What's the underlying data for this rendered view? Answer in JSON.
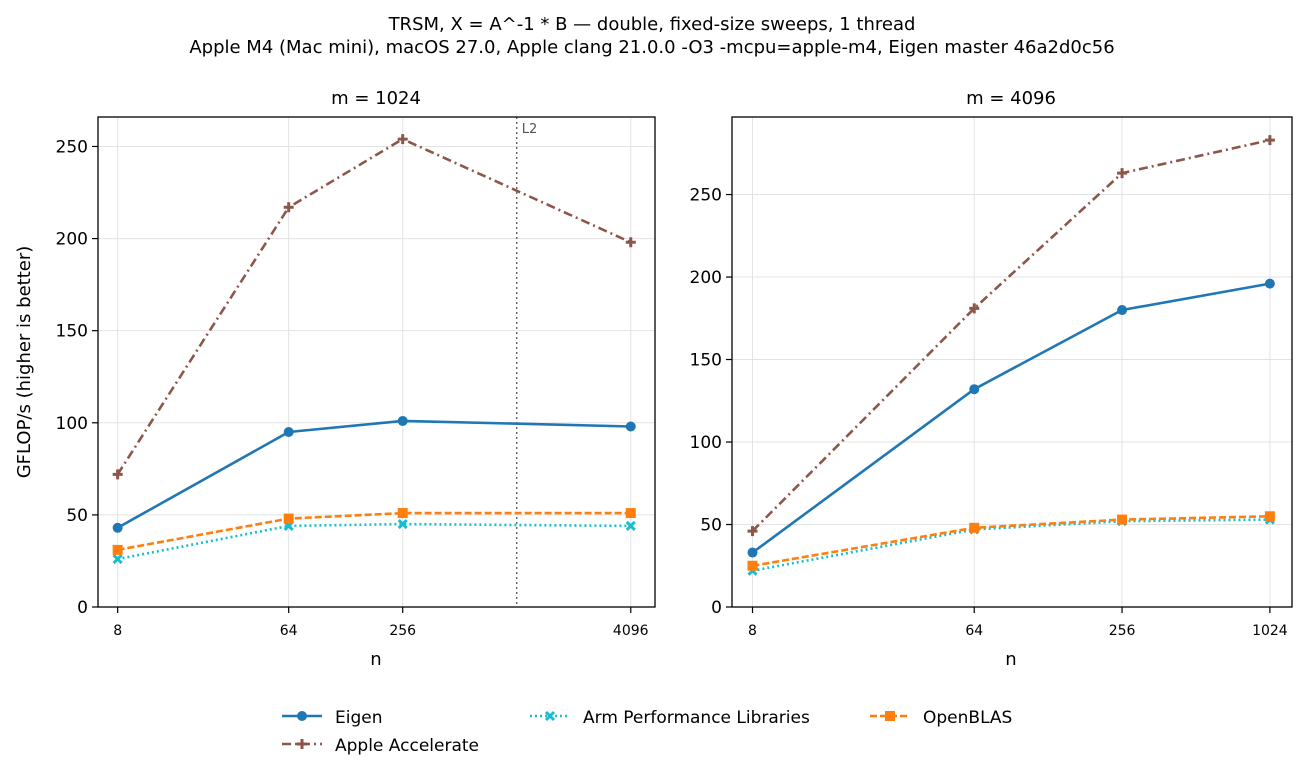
{
  "figure": {
    "title_line1": "TRSM, X = A^-1 * B — double, fixed-size sweeps, 1 thread",
    "title_line2": "Apple M4 (Mac mini), macOS 27.0, Apple clang 21.0.0 -O3 -mcpu=apple-m4, Eigen master 46a2d0c56"
  },
  "colors": {
    "Eigen": "#1f77b4",
    "Apple Accelerate": "#8c564b",
    "Arm Performance Libraries": "#17becf",
    "OpenBLAS": "#ff7f0e",
    "l2_marker": "#555555",
    "grid": "#e3e3e3"
  },
  "legend": {
    "placement": "bottom-center",
    "items": [
      {
        "label": "Eigen",
        "marker": "circle",
        "dash": "solid"
      },
      {
        "label": "Apple Accelerate",
        "marker": "plus",
        "dash": "dashdot"
      },
      {
        "label": "Arm Performance Libraries",
        "marker": "x",
        "dash": "dotted"
      },
      {
        "label": "OpenBLAS",
        "marker": "square",
        "dash": "dashed"
      }
    ]
  },
  "chart_data": [
    {
      "type": "line",
      "title": "m = 1024",
      "xlabel": "n",
      "ylabel": "GFLOP/s (higher is better)",
      "xscale": "log2",
      "x": [
        8,
        64,
        256,
        4096
      ],
      "xticklabels": [
        "8",
        "64",
        "256",
        "4096"
      ],
      "xlim": [
        6.3,
        5500
      ],
      "ylim": [
        0,
        266
      ],
      "yticks": [
        0,
        50,
        100,
        150,
        200,
        250
      ],
      "grid": true,
      "annotation": {
        "label": "L2",
        "x": 1024
      },
      "series": [
        {
          "name": "Eigen",
          "values": [
            43,
            95,
            101,
            98
          ]
        },
        {
          "name": "Apple Accelerate",
          "values": [
            72,
            217,
            254,
            198
          ]
        },
        {
          "name": "Arm Performance Libraries",
          "values": [
            26,
            44,
            45,
            44
          ]
        },
        {
          "name": "OpenBLAS",
          "values": [
            31,
            48,
            51,
            51
          ]
        }
      ]
    },
    {
      "type": "line",
      "title": "m = 4096",
      "xlabel": "n",
      "ylabel": "",
      "xscale": "log2",
      "x": [
        8,
        64,
        256,
        1024
      ],
      "xticklabels": [
        "8",
        "64",
        "256",
        "1024"
      ],
      "xlim": [
        6.6,
        1260
      ],
      "ylim": [
        0,
        297
      ],
      "yticks": [
        0,
        50,
        100,
        150,
        200,
        250
      ],
      "grid": true,
      "series": [
        {
          "name": "Eigen",
          "values": [
            33,
            132,
            180,
            196
          ]
        },
        {
          "name": "Apple Accelerate",
          "values": [
            46,
            181,
            263,
            283
          ]
        },
        {
          "name": "Arm Performance Libraries",
          "values": [
            22,
            47,
            52,
            53
          ]
        },
        {
          "name": "OpenBLAS",
          "values": [
            25,
            48,
            53,
            55
          ]
        }
      ]
    }
  ]
}
